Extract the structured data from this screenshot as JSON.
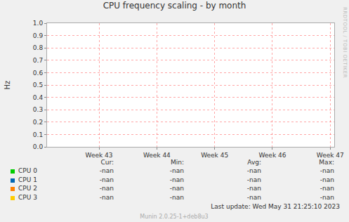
{
  "chart_data": {
    "type": "line",
    "title": "CPU frequency scaling - by month",
    "y_label": "Hz",
    "x": [],
    "xlim": [
      42.1,
      47.07
    ],
    "xticks": [
      {
        "value": 43,
        "label": "Week 43"
      },
      {
        "value": 44,
        "label": "Week 44"
      },
      {
        "value": 45,
        "label": "Week 45"
      },
      {
        "value": 46,
        "label": "Week 46"
      },
      {
        "value": 47,
        "label": "Week 47"
      }
    ],
    "ylim": [
      0,
      1
    ],
    "yticks": [
      {
        "value": 0,
        "label": "0.0"
      },
      0.1,
      0.2,
      0.3,
      0.4,
      0.5,
      0.6,
      0.7,
      0.8,
      0.9,
      {
        "value": 1,
        "label": "1.0"
      }
    ],
    "grid": true,
    "legend_columns": [
      "Cur:",
      "Min:",
      "Avg:",
      "Max:"
    ],
    "series": [
      {
        "name": "CPU 0",
        "color": "#00cc00",
        "values": [],
        "stats": [
          "-nan",
          "-nan",
          "-nan",
          "-nan"
        ]
      },
      {
        "name": "CPU 1",
        "color": "#0066b3",
        "values": [],
        "stats": [
          "-nan",
          "-nan",
          "-nan",
          "-nan"
        ]
      },
      {
        "name": "CPU 2",
        "color": "#ff8000",
        "values": [],
        "stats": [
          "-nan",
          "-nan",
          "-nan",
          "-nan"
        ]
      },
      {
        "name": "CPU 3",
        "color": "#ffcc00",
        "values": [],
        "stats": [
          "-nan",
          "-nan",
          "-nan",
          "-nan"
        ]
      }
    ],
    "last_update": "Last update: Wed May 31 21:25:10 2023",
    "footer": "Munin 2.0.25-1+deb8u3",
    "watermark": "RRDTOOL / TOBI OETIKER"
  }
}
